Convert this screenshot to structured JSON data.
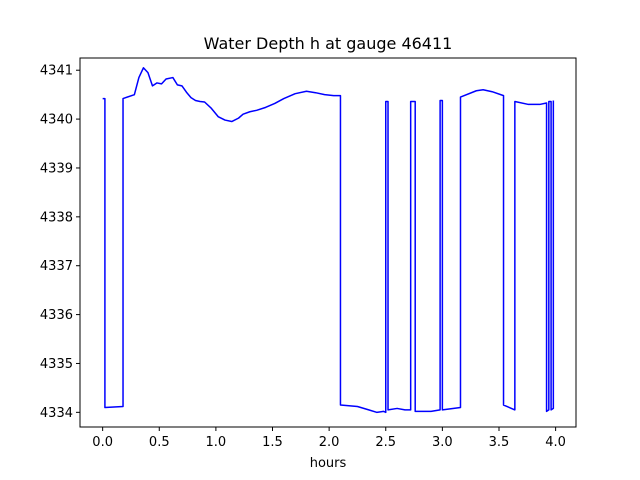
{
  "chart_data": {
    "type": "line",
    "title": "Water Depth h at gauge 46411",
    "xlabel": "hours",
    "ylabel": "",
    "xlim": [
      -0.2,
      4.18
    ],
    "ylim": [
      4333.7,
      4341.25
    ],
    "grid": false,
    "legend": "none",
    "x_ticks": [
      0.0,
      0.5,
      1.0,
      1.5,
      2.0,
      2.5,
      3.0,
      3.5,
      4.0
    ],
    "x_tick_labels": [
      "0.0",
      "0.5",
      "1.0",
      "1.5",
      "2.0",
      "2.5",
      "3.0",
      "3.5",
      "4.0"
    ],
    "y_ticks": [
      4334,
      4335,
      4336,
      4337,
      4338,
      4339,
      4340,
      4341
    ],
    "y_tick_labels": [
      "4334",
      "4335",
      "4336",
      "4337",
      "4338",
      "4339",
      "4340",
      "4341"
    ],
    "series": [
      {
        "color": "#0000ff",
        "x": [
          0.0,
          0.02,
          0.02,
          0.18,
          0.18,
          0.28,
          0.32,
          0.36,
          0.4,
          0.44,
          0.48,
          0.52,
          0.56,
          0.62,
          0.66,
          0.7,
          0.74,
          0.78,
          0.82,
          0.86,
          0.9,
          0.96,
          1.02,
          1.08,
          1.14,
          1.2,
          1.24,
          1.3,
          1.36,
          1.44,
          1.52,
          1.6,
          1.7,
          1.8,
          1.88,
          1.96,
          2.04,
          2.1,
          2.1,
          2.25,
          2.35,
          2.42,
          2.48,
          2.5,
          2.5,
          2.52,
          2.52,
          2.6,
          2.67,
          2.72,
          2.72,
          2.76,
          2.76,
          2.9,
          2.98,
          2.98,
          3.0,
          3.0,
          3.16,
          3.16,
          3.3,
          3.36,
          3.44,
          3.54,
          3.54,
          3.64,
          3.64,
          3.76,
          3.86,
          3.92,
          3.92,
          3.94,
          3.94,
          3.96,
          3.96,
          3.98,
          3.98
        ],
        "y": [
          4340.42,
          4340.42,
          4334.1,
          4334.12,
          4340.42,
          4340.5,
          4340.85,
          4341.05,
          4340.95,
          4340.68,
          4340.74,
          4340.72,
          4340.82,
          4340.85,
          4340.7,
          4340.68,
          4340.55,
          4340.44,
          4340.38,
          4340.36,
          4340.35,
          4340.22,
          4340.05,
          4339.98,
          4339.95,
          4340.02,
          4340.1,
          4340.15,
          4340.18,
          4340.24,
          4340.32,
          4340.42,
          4340.52,
          4340.57,
          4340.54,
          4340.5,
          4340.48,
          4340.48,
          4334.15,
          4334.12,
          4334.05,
          4334.0,
          4334.02,
          4334.0,
          4340.36,
          4340.36,
          4334.05,
          4334.08,
          4334.05,
          4334.05,
          4340.36,
          4340.36,
          4334.02,
          4334.02,
          4334.05,
          4340.38,
          4340.38,
          4334.05,
          4334.1,
          4340.45,
          4340.58,
          4340.6,
          4340.56,
          4340.48,
          4334.15,
          4334.05,
          4340.36,
          4340.3,
          4340.3,
          4340.33,
          4334.02,
          4334.05,
          4340.36,
          4340.36,
          4334.05,
          4334.08,
          4340.38
        ]
      }
    ]
  }
}
